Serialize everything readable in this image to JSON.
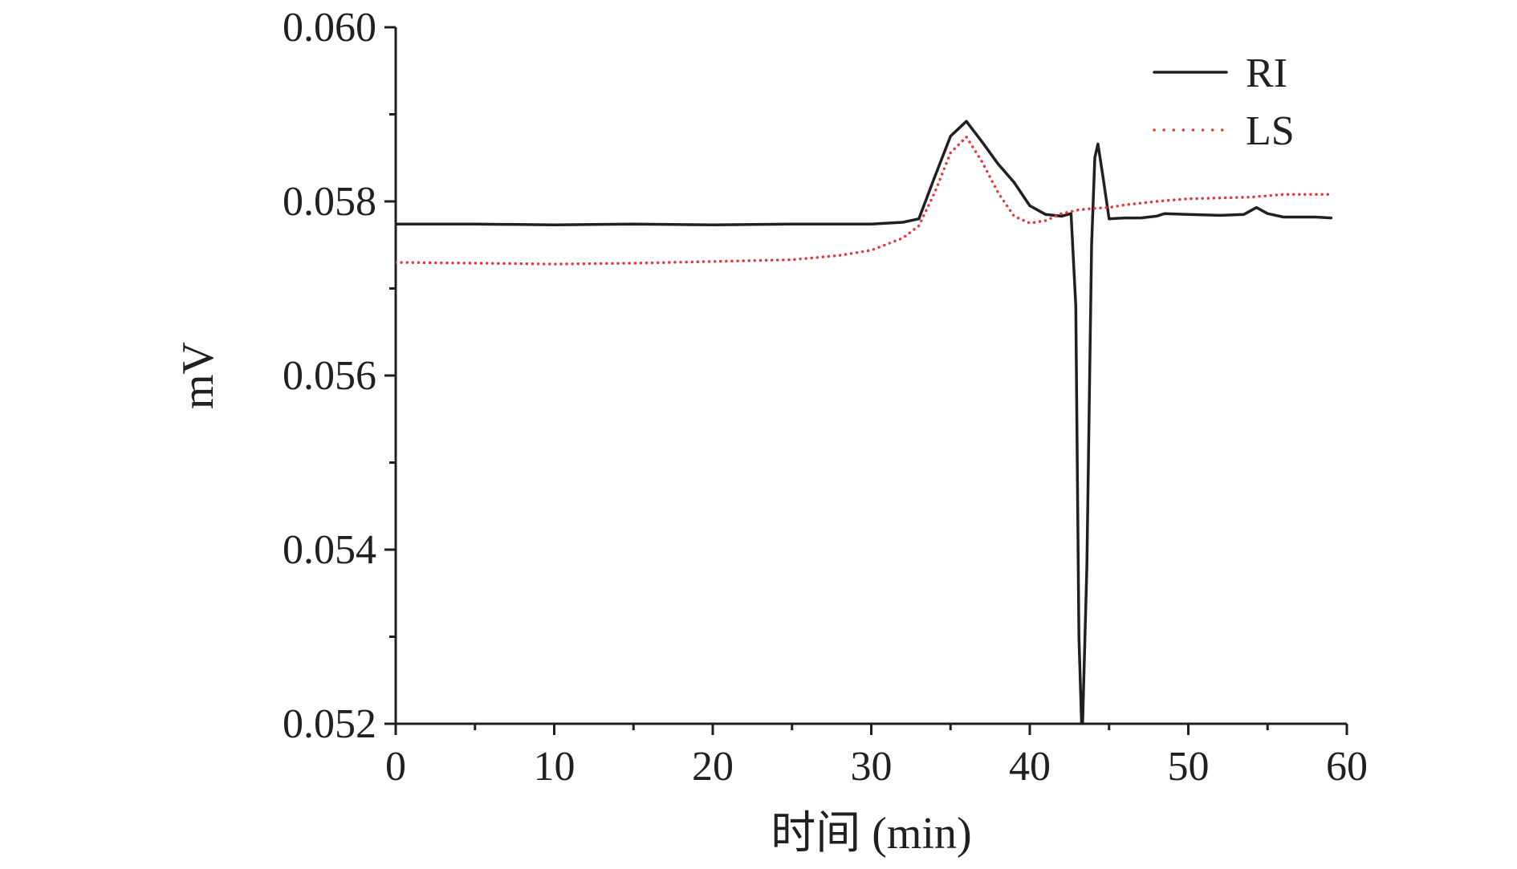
{
  "chart_data": {
    "type": "line",
    "title": "",
    "xlabel": "时间 (min)",
    "ylabel": "mV",
    "xlim": [
      0,
      60
    ],
    "ylim": [
      0.052,
      0.06
    ],
    "x_ticks": [
      0,
      10,
      20,
      30,
      40,
      50,
      60
    ],
    "x_tick_labels": [
      "0",
      "10",
      "20",
      "30",
      "40",
      "50",
      "60"
    ],
    "y_ticks": [
      0.052,
      0.054,
      0.056,
      0.058,
      0.06
    ],
    "y_tick_labels": [
      "0.052",
      "0.054",
      "0.056",
      "0.058",
      "0.060"
    ],
    "grid": false,
    "legend_position": "top-right",
    "series": [
      {
        "name": "RI",
        "color": "#231f20",
        "style": "solid",
        "x": [
          0,
          5,
          10,
          15,
          20,
          25,
          30,
          32,
          33,
          34,
          35,
          36,
          37,
          38,
          39,
          40,
          41,
          42,
          42.6,
          42.9,
          43.1,
          43.3,
          43.6,
          43.9,
          44.1,
          44.3,
          44.6,
          45,
          46,
          47,
          48,
          48.5,
          50,
          52,
          53.5,
          54.3,
          55,
          56,
          57,
          58,
          59
        ],
        "y": [
          0.05774,
          0.05774,
          0.05773,
          0.05774,
          0.05773,
          0.05774,
          0.05774,
          0.05776,
          0.0578,
          0.05828,
          0.05875,
          0.05892,
          0.05868,
          0.05843,
          0.05822,
          0.05795,
          0.05785,
          0.05783,
          0.05786,
          0.0568,
          0.053,
          0.0518,
          0.0538,
          0.0575,
          0.0585,
          0.05866,
          0.0583,
          0.0578,
          0.05781,
          0.05781,
          0.05783,
          0.05786,
          0.05785,
          0.05784,
          0.05785,
          0.05793,
          0.05786,
          0.05782,
          0.05782,
          0.05782,
          0.05781
        ]
      },
      {
        "name": "LS",
        "color": "#e03c3c",
        "style": "dotted",
        "x": [
          0,
          5,
          10,
          15,
          20,
          25,
          28,
          30,
          32,
          33,
          34,
          35,
          36,
          37,
          38,
          39,
          40,
          41,
          42,
          43,
          44,
          45,
          46,
          47,
          48,
          50,
          52,
          54,
          56,
          58,
          59
        ],
        "y": [
          0.0573,
          0.05729,
          0.05728,
          0.05729,
          0.05731,
          0.05733,
          0.05738,
          0.05744,
          0.05758,
          0.05772,
          0.0581,
          0.05856,
          0.05874,
          0.05845,
          0.0581,
          0.05783,
          0.05775,
          0.05778,
          0.05786,
          0.0579,
          0.05792,
          0.05793,
          0.05796,
          0.05798,
          0.058,
          0.05803,
          0.05804,
          0.05805,
          0.05808,
          0.05808,
          0.05808
        ]
      }
    ]
  }
}
